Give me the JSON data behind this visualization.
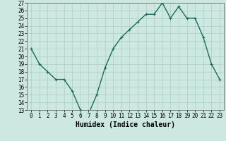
{
  "x": [
    0,
    1,
    2,
    3,
    4,
    5,
    6,
    7,
    8,
    9,
    10,
    11,
    12,
    13,
    14,
    15,
    16,
    17,
    18,
    19,
    20,
    21,
    22,
    23
  ],
  "y": [
    21,
    19,
    18,
    17,
    17,
    15.5,
    13,
    12.5,
    15,
    18.5,
    21,
    22.5,
    23.5,
    24.5,
    25.5,
    25.5,
    27,
    25,
    26.5,
    25,
    25,
    22.5,
    19,
    17
  ],
  "xlabel": "Humidex (Indice chaleur)",
  "ylim": [
    13,
    27
  ],
  "xlim_min": -0.5,
  "xlim_max": 23.5,
  "yticks": [
    13,
    14,
    15,
    16,
    17,
    18,
    19,
    20,
    21,
    22,
    23,
    24,
    25,
    26,
    27
  ],
  "xticks": [
    0,
    1,
    2,
    3,
    4,
    5,
    6,
    7,
    8,
    9,
    10,
    11,
    12,
    13,
    14,
    15,
    16,
    17,
    18,
    19,
    20,
    21,
    22,
    23
  ],
  "line_color": "#1a6b5a",
  "marker": "+",
  "bg_color": "#cce8e0",
  "grid_color": "#aacfc7",
  "xlabel_fontsize": 7,
  "tick_fontsize": 5.5,
  "linewidth": 1.0,
  "markersize": 3,
  "markeredgewidth": 0.8
}
